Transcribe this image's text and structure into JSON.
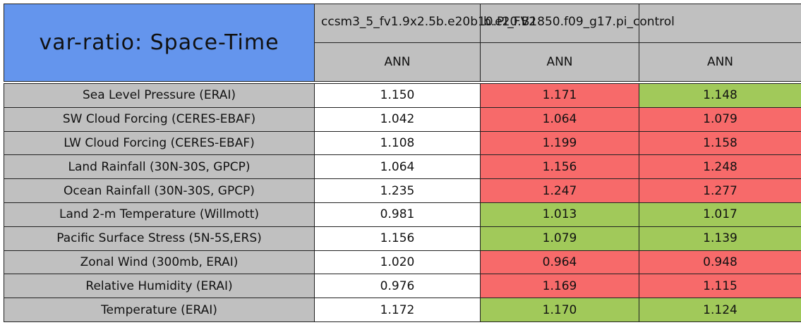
{
  "title": "var-ratio: Space-Time",
  "columns": [
    {
      "name": "ccsm3_5_fv1.9x2.5b.e20b10.PI_FV2",
      "period": "ANN"
    },
    {
      "name": "b.e20.B1850.f09_g17.pi_control",
      "period": "ANN"
    },
    {
      "period": "ANN"
    }
  ],
  "colors": {
    "title": "#6495ed",
    "header": "#c0c0c0",
    "label": "#c0c0c0",
    "plain": "#ffffff",
    "better": "#a1c95a",
    "worse": "#f76a6a"
  },
  "rows": [
    {
      "label": "Sea Level Pressure (ERAI)",
      "values": [
        "1.150",
        "1.171",
        "1.148"
      ],
      "status": [
        "plain",
        "worse",
        "better"
      ]
    },
    {
      "label": "SW Cloud Forcing (CERES-EBAF)",
      "values": [
        "1.042",
        "1.064",
        "1.079"
      ],
      "status": [
        "plain",
        "worse",
        "worse"
      ]
    },
    {
      "label": "LW Cloud Forcing (CERES-EBAF)",
      "values": [
        "1.108",
        "1.199",
        "1.158"
      ],
      "status": [
        "plain",
        "worse",
        "worse"
      ]
    },
    {
      "label": "Land Rainfall (30N-30S, GPCP)",
      "values": [
        "1.064",
        "1.156",
        "1.248"
      ],
      "status": [
        "plain",
        "worse",
        "worse"
      ]
    },
    {
      "label": "Ocean Rainfall (30N-30S, GPCP)",
      "values": [
        "1.235",
        "1.247",
        "1.277"
      ],
      "status": [
        "plain",
        "worse",
        "worse"
      ]
    },
    {
      "label": "Land 2-m Temperature (Willmott)",
      "values": [
        "0.981",
        "1.013",
        "1.017"
      ],
      "status": [
        "plain",
        "better",
        "better"
      ]
    },
    {
      "label": "Pacific Surface Stress (5N-5S,ERS)",
      "values": [
        "1.156",
        "1.079",
        "1.139"
      ],
      "status": [
        "plain",
        "better",
        "better"
      ]
    },
    {
      "label": "Zonal Wind (300mb, ERAI)",
      "values": [
        "1.020",
        "0.964",
        "0.948"
      ],
      "status": [
        "plain",
        "worse",
        "worse"
      ]
    },
    {
      "label": "Relative Humidity (ERAI)",
      "values": [
        "0.976",
        "1.169",
        "1.115"
      ],
      "status": [
        "plain",
        "worse",
        "worse"
      ]
    },
    {
      "label": "Temperature (ERAI)",
      "values": [
        "1.172",
        "1.170",
        "1.124"
      ],
      "status": [
        "plain",
        "better",
        "better"
      ]
    }
  ]
}
